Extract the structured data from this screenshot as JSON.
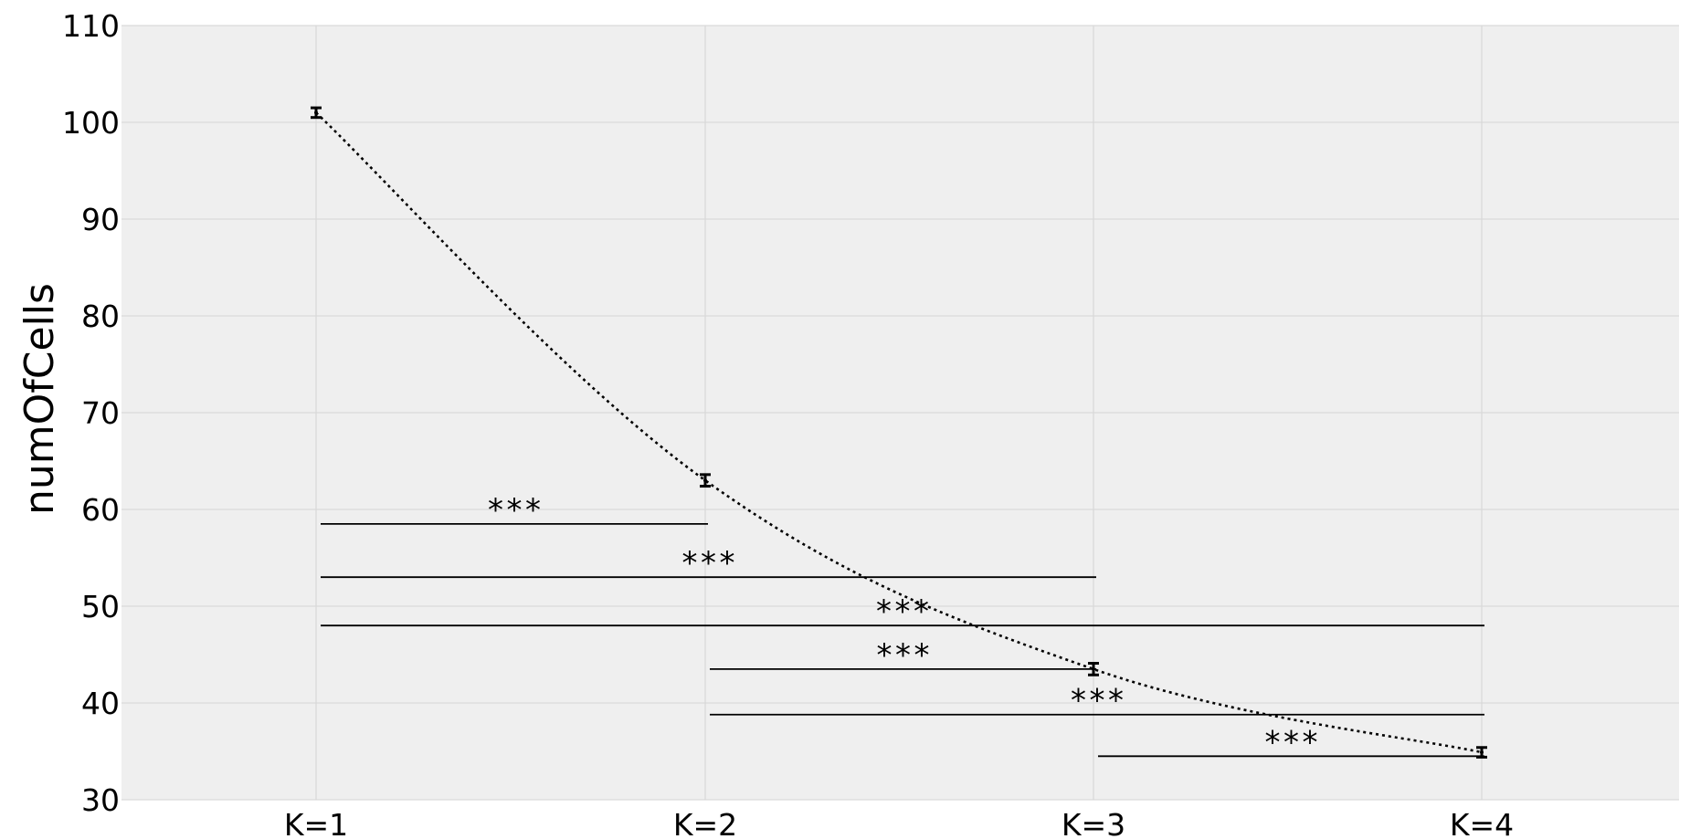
{
  "chart_data": {
    "type": "line",
    "title": "",
    "xlabel": "",
    "ylabel": "numOfCells",
    "categories": [
      "K=1",
      "K=2",
      "K=3",
      "K=4"
    ],
    "series": [
      {
        "values": [
          101.0,
          63.0,
          43.5,
          34.9
        ],
        "error": [
          0.5,
          0.6,
          0.6,
          0.5
        ],
        "line_style": "dotted",
        "color": "#000000"
      }
    ],
    "ylim": [
      30,
      110
    ],
    "yticks": [
      30,
      40,
      50,
      60,
      70,
      80,
      90,
      100,
      110
    ],
    "grid": true,
    "background": "#efefef",
    "grid_color": "#d9d9d9",
    "significance": [
      {
        "from": "K=1",
        "to": "K=2",
        "y": 58.5,
        "label": "***"
      },
      {
        "from": "K=1",
        "to": "K=3",
        "y": 53.0,
        "label": "***"
      },
      {
        "from": "K=1",
        "to": "K=4",
        "y": 48.0,
        "label": "***"
      },
      {
        "from": "K=2",
        "to": "K=3",
        "y": 43.5,
        "label": "***"
      },
      {
        "from": "K=2",
        "to": "K=4",
        "y": 38.8,
        "label": "***"
      },
      {
        "from": "K=3",
        "to": "K=4",
        "y": 34.5,
        "label": "***"
      }
    ]
  }
}
